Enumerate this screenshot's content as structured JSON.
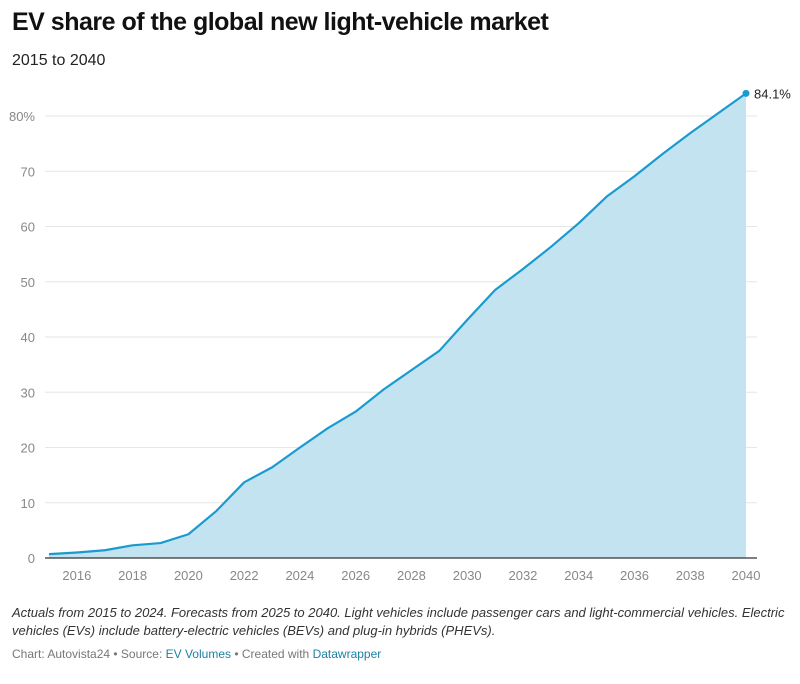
{
  "header": {
    "title": "EV share of the global new light-vehicle market",
    "subtitle": "2015 to 2040"
  },
  "chart_data": {
    "type": "area",
    "title": "EV share of the global new light-vehicle market",
    "subtitle": "2015 to 2040",
    "x": [
      2015,
      2016,
      2017,
      2018,
      2019,
      2020,
      2021,
      2022,
      2023,
      2024,
      2025,
      2026,
      2027,
      2028,
      2029,
      2030,
      2031,
      2032,
      2033,
      2034,
      2035,
      2036,
      2037,
      2038,
      2039,
      2040
    ],
    "values": [
      0.7,
      1.0,
      1.4,
      2.3,
      2.7,
      4.3,
      8.5,
      13.7,
      16.4,
      20.0,
      23.5,
      26.5,
      30.5,
      34.0,
      37.5,
      43.1,
      48.5,
      52.3,
      56.3,
      60.6,
      65.4,
      69.1,
      73.1,
      76.9,
      80.5,
      84.1
    ],
    "xlim": [
      2015,
      2040
    ],
    "ylim": [
      0,
      80
    ],
    "x_ticks": [
      "2016",
      "2018",
      "2020",
      "2022",
      "2024",
      "2026",
      "2028",
      "2030",
      "2032",
      "2034",
      "2036",
      "2038",
      "2040"
    ],
    "y_ticks": [
      "0",
      "10",
      "20",
      "30",
      "40",
      "50",
      "60",
      "70",
      "80%"
    ],
    "end_label": "84.1%",
    "grid": true,
    "colors": {
      "line": "#1a9bcf",
      "fill": "#c3e3f1"
    }
  },
  "footer": {
    "notes": "Actuals from 2015 to 2024. Forecasts from 2025 to 2040. Light vehicles include passenger cars and light-commercial vehicles. Electric vehicles (EVs) include battery-electric vehicles (BEVs) and plug-in hybrids (PHEVs).",
    "chart_by": "Chart: Autovista24 • Source: ",
    "source_link": "EV Volumes",
    "created": " • Created with ",
    "tool_link": "Datawrapper"
  }
}
